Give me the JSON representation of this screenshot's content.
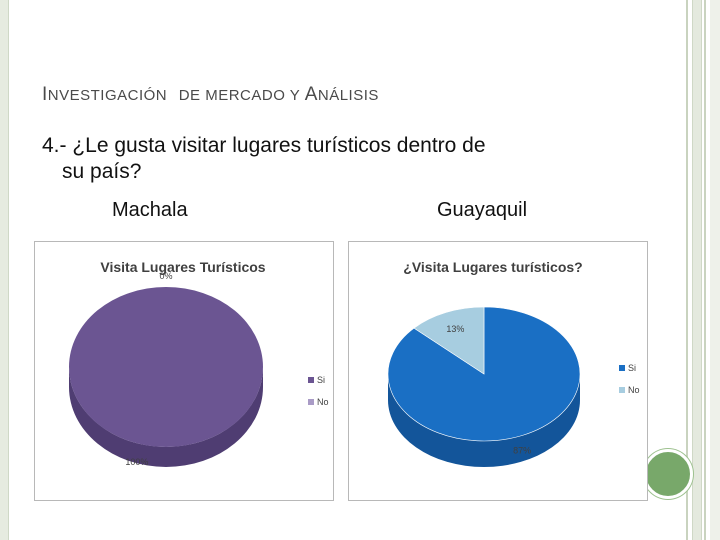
{
  "slide": {
    "heading_first_letter": "I",
    "heading_rest_1": "NVESTIGACIÓN",
    "heading_rest_2": "DE MERCADO Y ",
    "heading_first_letter_2": "A",
    "heading_rest_3": "NÁLISIS",
    "question_line1": "4.- ¿Le gusta visitar lugares turísticos dentro de",
    "question_line2": "su país?",
    "city_left": "Machala",
    "city_right": "Guayaquil"
  },
  "colors": {
    "machala_si": "#6b5592",
    "machala_si_side": "#4f3d72",
    "machala_no": "#a99bc6",
    "guayaquil_si": "#1a6fc4",
    "guayaquil_si_side": "#13559a",
    "guayaquil_no": "#a7cde0",
    "guayaquil_no_side": "#7fa9bd",
    "deco_green": "#78a86a"
  },
  "chart_data": [
    {
      "type": "pie",
      "title": "Visita Lugares Turísticos",
      "categories": [
        "Si",
        "No"
      ],
      "values": [
        100,
        0
      ],
      "data_labels": [
        "100%",
        "0%"
      ],
      "legend": [
        "Si",
        "No"
      ],
      "legend_position": "right"
    },
    {
      "type": "pie",
      "title": "¿Visita Lugares turísticos?",
      "categories": [
        "Si",
        "No"
      ],
      "values": [
        87,
        13
      ],
      "data_labels": [
        "87%",
        "13%"
      ],
      "legend": [
        "Si",
        "No"
      ],
      "legend_position": "right"
    }
  ]
}
